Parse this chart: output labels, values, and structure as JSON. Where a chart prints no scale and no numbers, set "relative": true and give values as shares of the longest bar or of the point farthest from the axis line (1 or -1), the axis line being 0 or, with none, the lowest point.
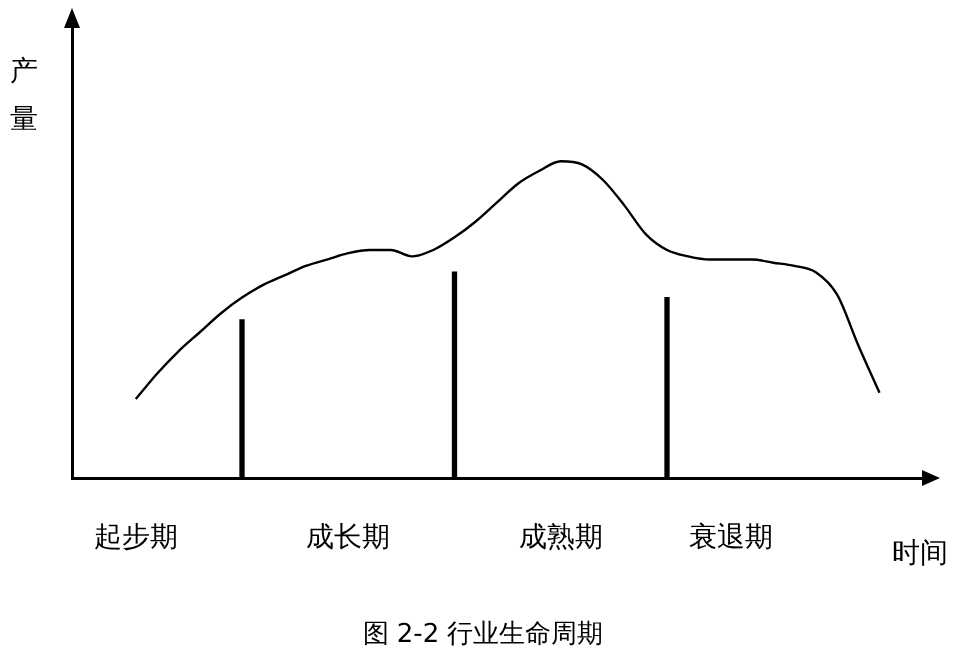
{
  "chart_data": {
    "type": "line",
    "relative": true,
    "title": "图 2-2 行业生命周期",
    "xlabel": "时间",
    "ylabel": "产量",
    "marker": "none",
    "grid": false,
    "legend": false,
    "categories": [
      null,
      null,
      null,
      "起步期",
      null,
      null,
      null,
      null,
      null,
      null,
      null,
      null,
      null,
      "成长期",
      null,
      null,
      null,
      null,
      null,
      null,
      null,
      null,
      null,
      "成熟期",
      null,
      null,
      null,
      null,
      null,
      null,
      null,
      "衰退期",
      null,
      null,
      null,
      null,
      null,
      null,
      null,
      null,
      null
    ],
    "series": [
      {
        "color": "#000000",
        "line_style": "solid",
        "values": [
          null,
          null,
          null,
          0.25,
          0.33,
          0.4,
          0.46,
          0.52,
          0.57,
          0.61,
          0.64,
          0.67,
          0.69,
          0.71,
          0.72,
          0.72,
          0.7,
          0.72,
          0.76,
          0.81,
          0.87,
          0.93,
          0.97,
          1,
          0.99,
          0.94,
          0.86,
          0.77,
          0.72,
          0.7,
          0.69,
          0.69,
          0.69,
          0.68,
          0.67,
          0.65,
          0.58,
          0.42,
          0.27,
          null,
          null
        ]
      },
      {
        "type": "bar",
        "color": "#000000",
        "values": [
          null,
          null,
          null,
          null,
          null,
          null,
          null,
          null,
          0.5,
          null,
          null,
          null,
          null,
          null,
          null,
          null,
          null,
          null,
          0.65,
          null,
          null,
          null,
          null,
          null,
          null,
          null,
          null,
          null,
          0.57,
          null,
          null,
          null,
          null,
          null,
          null,
          null,
          null,
          null,
          null,
          null,
          null
        ]
      }
    ]
  }
}
